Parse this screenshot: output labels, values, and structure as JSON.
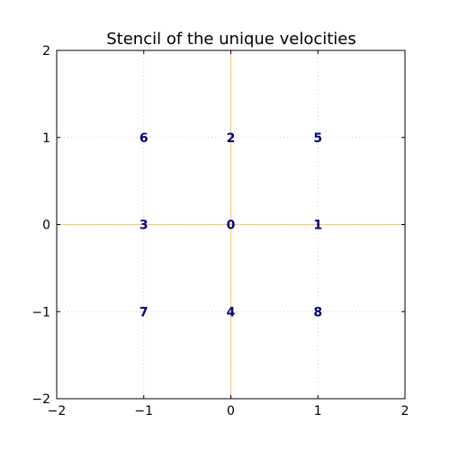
{
  "chart_data": {
    "type": "scatter",
    "title": "Stencil of the unique velocities",
    "xlabel": "",
    "ylabel": "",
    "xlim": [
      -2,
      2
    ],
    "ylim": [
      -2,
      2
    ],
    "xticks": [
      -2,
      -1,
      0,
      1,
      2
    ],
    "yticks": [
      -2,
      -1,
      0,
      1,
      2
    ],
    "xtick_labels": [
      "−2",
      "−1",
      "0",
      "1",
      "2"
    ],
    "ytick_labels": [
      "−2",
      "−1",
      "0",
      "1",
      "2"
    ],
    "grid": true,
    "axis_lines": {
      "x": 0,
      "y": 0,
      "color": "#ffa500"
    },
    "label_color": "#000080",
    "points": [
      {
        "label": "0",
        "x": 0,
        "y": 0
      },
      {
        "label": "1",
        "x": 1,
        "y": 0
      },
      {
        "label": "2",
        "x": 0,
        "y": 1
      },
      {
        "label": "3",
        "x": -1,
        "y": 0
      },
      {
        "label": "4",
        "x": 0,
        "y": -1
      },
      {
        "label": "5",
        "x": 1,
        "y": 1
      },
      {
        "label": "6",
        "x": -1,
        "y": 1
      },
      {
        "label": "7",
        "x": -1,
        "y": -1
      },
      {
        "label": "8",
        "x": 1,
        "y": -1
      }
    ]
  }
}
